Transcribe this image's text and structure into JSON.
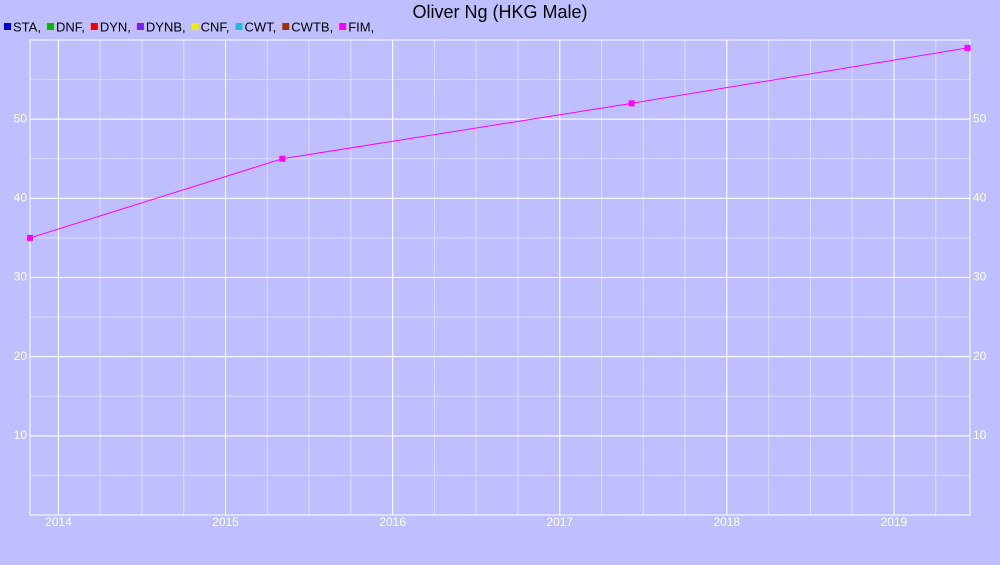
{
  "chart_data": {
    "type": "line",
    "title": "Oliver Ng (HKG Male)",
    "x": [
      2013.83,
      2015.34,
      2017.43,
      2019.44
    ],
    "series": [
      {
        "name": "STA,",
        "color": "#0000dd",
        "values": [
          null,
          null,
          null,
          null
        ]
      },
      {
        "name": "DNF,",
        "color": "#00bb00",
        "values": [
          null,
          null,
          null,
          null
        ]
      },
      {
        "name": "DYN,",
        "color": "#ee0000",
        "values": [
          null,
          null,
          null,
          null
        ]
      },
      {
        "name": "DYNB,",
        "color": "#7722ee",
        "values": [
          null,
          null,
          null,
          null
        ]
      },
      {
        "name": "CNF,",
        "color": "#eeee00",
        "values": [
          null,
          null,
          null,
          null
        ]
      },
      {
        "name": "CWT,",
        "color": "#22bbdd",
        "values": [
          null,
          null,
          null,
          null
        ]
      },
      {
        "name": "CWTB,",
        "color": "#993300",
        "values": [
          null,
          null,
          null,
          null
        ]
      },
      {
        "name": "FIM,",
        "color": "#ff00ff",
        "values": [
          35,
          45,
          52,
          59
        ]
      }
    ],
    "xlim": [
      2013.83,
      2019.455
    ],
    "xticks": [
      2014,
      2015,
      2016,
      2017,
      2018,
      2019
    ],
    "ylim": [
      0,
      60
    ],
    "yticks": [
      10,
      20,
      30,
      40,
      50
    ],
    "grid": true,
    "minor_grid": true,
    "legend": "top-left",
    "background": "#bfbfff"
  }
}
